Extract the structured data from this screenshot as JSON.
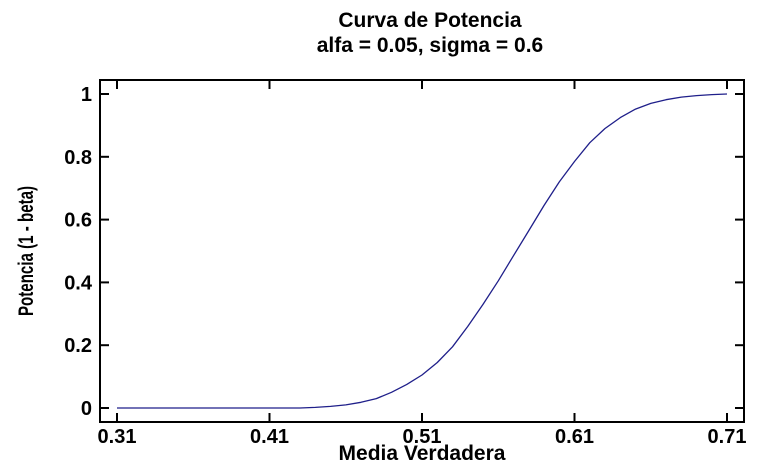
{
  "chart_data": {
    "type": "line",
    "title": "Curva de Potencia",
    "subtitle": "alfa = 0.05, sigma = 0.6",
    "xlabel": "Media Verdadera",
    "ylabel": "Potencia (1 - beta)",
    "xlim": [
      0.31,
      0.71
    ],
    "ylim": [
      0,
      1
    ],
    "xticks": [
      0.31,
      0.41,
      0.51,
      0.61,
      0.71
    ],
    "xtick_labels": [
      "0.31",
      "0.41",
      "0.51",
      "0.61",
      "0.71"
    ],
    "yticks": [
      0,
      0.2,
      0.4,
      0.6,
      0.8,
      1
    ],
    "ytick_labels": [
      "0",
      "0.2",
      "0.4",
      "0.6",
      "0.8",
      "1"
    ],
    "grid": false,
    "series": [
      {
        "color": "#1f1f8a",
        "x": [
          0.31,
          0.33,
          0.35,
          0.37,
          0.39,
          0.41,
          0.43,
          0.44,
          0.45,
          0.46,
          0.47,
          0.48,
          0.49,
          0.5,
          0.51,
          0.52,
          0.53,
          0.54,
          0.55,
          0.56,
          0.57,
          0.58,
          0.59,
          0.6,
          0.61,
          0.62,
          0.63,
          0.64,
          0.65,
          0.66,
          0.67,
          0.68,
          0.69,
          0.7,
          0.71
        ],
        "y": [
          0.0,
          0.0,
          0.0,
          0.0,
          0.0,
          0.0,
          0.0,
          0.002,
          0.005,
          0.01,
          0.018,
          0.03,
          0.05,
          0.075,
          0.105,
          0.145,
          0.195,
          0.26,
          0.33,
          0.405,
          0.485,
          0.565,
          0.645,
          0.72,
          0.785,
          0.845,
          0.89,
          0.925,
          0.952,
          0.97,
          0.982,
          0.99,
          0.995,
          0.998,
          1.0
        ]
      }
    ]
  }
}
